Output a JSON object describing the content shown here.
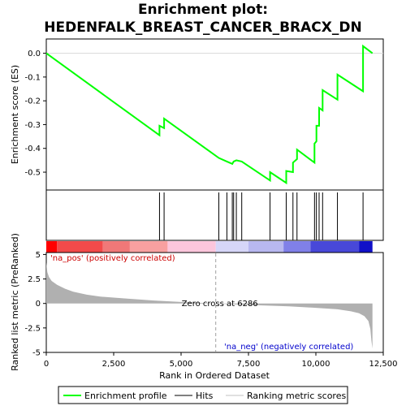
{
  "chart_data": {
    "type": "line",
    "title_line1": "Enrichment plot:",
    "title_line2": "HEDENFALK_BREAST_CANCER_BRACX_DN",
    "es_axis": {
      "ylabel": "Enrichment score (ES)",
      "ylim": [
        -0.575,
        0.06
      ],
      "ticks": [
        0.0,
        -0.1,
        -0.2,
        -0.3,
        -0.4,
        -0.5
      ],
      "tick_labels": [
        "0.0",
        "-0.1",
        "-0.2",
        "-0.3",
        "-0.4",
        "-0.5"
      ]
    },
    "rank_axis": {
      "xlabel": "Rank in Ordered Dataset",
      "xlim": [
        0,
        12500
      ],
      "ticks": [
        0,
        2500,
        5000,
        7500,
        10000,
        12500
      ],
      "tick_labels": [
        "0",
        "2,500",
        "5,000",
        "7,500",
        "10,000",
        "12,500"
      ]
    },
    "metric_axis": {
      "ylabel": "Ranked list metric (PreRanked)",
      "ylim": [
        -5,
        5.2
      ],
      "ticks": [
        5,
        2.5,
        0,
        -2.5,
        -5
      ],
      "tick_labels": [
        "5",
        "2.5",
        "0",
        "-2.5",
        "-5"
      ]
    },
    "enrichment_profile": {
      "name": "Enrichment profile",
      "color": "#00ff00",
      "x": [
        0,
        4200,
        4200,
        4370,
        4370,
        6400,
        6700,
        6900,
        6950,
        7050,
        7250,
        8300,
        8300,
        8900,
        8900,
        9150,
        9150,
        9300,
        9300,
        9950,
        9950,
        10020,
        10020,
        10120,
        10120,
        10250,
        10250,
        10800,
        10800,
        11750,
        11750,
        12100
      ],
      "y": [
        0.0,
        -0.345,
        -0.305,
        -0.315,
        -0.275,
        -0.44,
        -0.455,
        -0.465,
        -0.455,
        -0.45,
        -0.455,
        -0.535,
        -0.5,
        -0.545,
        -0.495,
        -0.5,
        -0.46,
        -0.445,
        -0.405,
        -0.46,
        -0.38,
        -0.37,
        -0.305,
        -0.305,
        -0.23,
        -0.24,
        -0.155,
        -0.195,
        -0.09,
        -0.16,
        0.03,
        0.0
      ]
    },
    "hits": {
      "name": "Hits",
      "x": [
        4200,
        4370,
        6400,
        6700,
        6900,
        6950,
        7050,
        7250,
        8300,
        8900,
        9150,
        9300,
        9950,
        10020,
        10120,
        10250,
        10800,
        11750
      ]
    },
    "ranking_metric": {
      "name": "Ranking metric scores",
      "x": [
        0,
        40,
        100,
        200,
        400,
        700,
        1000,
        1500,
        2000,
        3000,
        4000,
        5000,
        6286,
        7000,
        8000,
        9000,
        10000,
        10800,
        11300,
        11600,
        11800,
        11950,
        12020,
        12060,
        12100
      ],
      "y": [
        4.2,
        3.2,
        2.7,
        2.3,
        1.9,
        1.5,
        1.2,
        0.9,
        0.7,
        0.5,
        0.3,
        0.15,
        0.0,
        -0.1,
        -0.2,
        -0.3,
        -0.45,
        -0.6,
        -0.8,
        -1.0,
        -1.3,
        -1.8,
        -2.6,
        -3.8,
        -4.6
      ]
    },
    "zero_cross": {
      "label": "Zero cross at 6286",
      "x": 6286
    },
    "pos_label": "'na_pos' (positively correlated)",
    "neg_label": "'na_neg' (negatively correlated)",
    "colors": {
      "pos": "#ff0000",
      "neg": "#0000ff",
      "profile": "#00ff00",
      "metric_fill": "#b0b0b0"
    }
  }
}
